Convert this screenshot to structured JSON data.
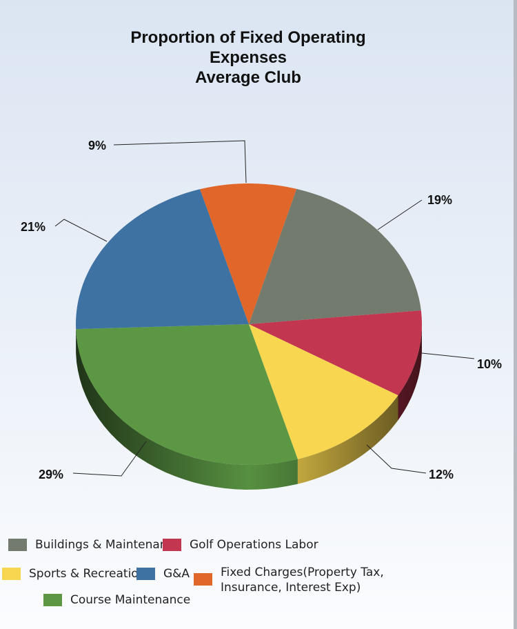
{
  "chart_data": {
    "type": "pie",
    "title": [
      "Proportion of Fixed Operating",
      "Expenses",
      "Average Club"
    ],
    "three_d": true,
    "legend_position": "bottom",
    "slices": [
      {
        "name": "Buildings & Maintenance",
        "value": 19,
        "label": "19%",
        "color": "#737a6e"
      },
      {
        "name": "Golf Operations Labor",
        "value": 10,
        "label": "10%",
        "color": "#c3364f"
      },
      {
        "name": "Sports & Recreation",
        "value": 12,
        "label": "12%",
        "color": "#f8d650"
      },
      {
        "name": "Course Maintenance",
        "value": 29,
        "label": "29%",
        "color": "#5c9844"
      },
      {
        "name": "G&A",
        "value": 21,
        "label": "21%",
        "color": "#3e72a3"
      },
      {
        "name": "Fixed Charges(Property Tax, Insurance, Interest Exp)",
        "value": 9,
        "label": "9%",
        "color": "#e06629"
      }
    ],
    "legend": {
      "buildings": "Buildings & Maintenance",
      "golf": "Golf Operations Labor",
      "sports": "Sports & Recreation",
      "ga": "G&A",
      "fixed_1": "Fixed Charges(Property Tax,",
      "fixed_2": "Insurance, Interest Exp)",
      "course": "Course Maintenance"
    }
  }
}
